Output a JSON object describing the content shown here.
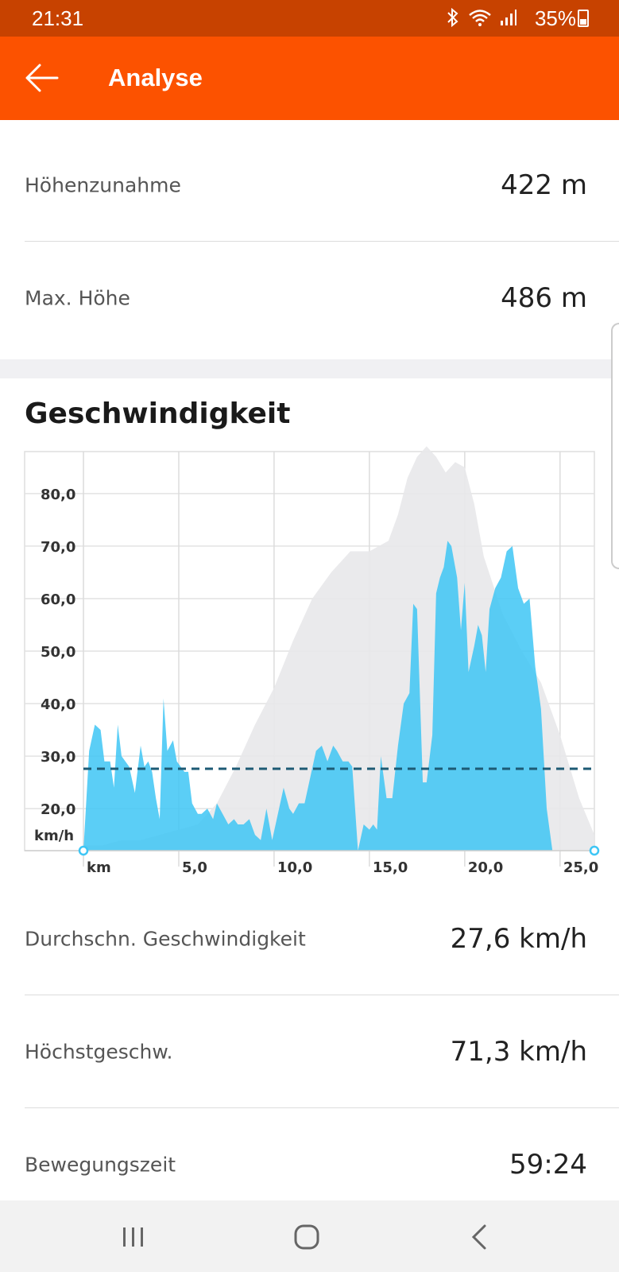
{
  "status_bar": {
    "time": "21:31",
    "battery": "35%"
  },
  "app_bar": {
    "title": "Analyse"
  },
  "stats_top": [
    {
      "label": "Höhenzunahme",
      "value": "422 m"
    },
    {
      "label": "Max. Höhe",
      "value": "486 m"
    }
  ],
  "speed_section": {
    "title": "Geschwindigkeit"
  },
  "chart_data": {
    "type": "area",
    "y_unit_label": "km/h",
    "x_unit_label": "km",
    "y_ticks": [
      "20,0",
      "30,0",
      "40,0",
      "50,0",
      "60,0",
      "70,0",
      "80,0"
    ],
    "x_ticks": [
      "5,0",
      "10,0",
      "15,0",
      "20,0",
      "25,0"
    ],
    "ylim": [
      12,
      88
    ],
    "xlim": [
      0,
      26.8
    ],
    "average_line": 27.6,
    "series": [
      {
        "values_x": [
          0,
          0.3,
          0.6,
          0.9,
          1.1,
          1.4,
          1.6,
          1.8,
          2.0,
          2.2,
          2.4,
          2.7,
          3.0,
          3.2,
          3.4,
          3.6,
          3.8,
          4.0,
          4.2,
          4.4,
          4.7,
          4.9,
          5.1,
          5.3,
          5.5,
          5.7,
          6.0,
          6.2,
          6.5,
          6.8,
          7.0,
          7.3,
          7.6,
          7.9,
          8.1,
          8.4,
          8.7,
          9.0,
          9.3,
          9.6,
          9.9,
          10.2,
          10.5,
          10.8,
          11.0,
          11.3,
          11.6,
          11.9,
          12.2,
          12.5,
          12.8,
          13.1,
          13.3,
          13.6,
          13.9,
          14.1,
          14.4,
          14.7,
          15.0,
          15.2,
          15.4,
          15.6,
          15.9,
          16.2,
          16.5,
          16.8,
          17.1,
          17.3,
          17.5,
          17.8,
          18.0,
          18.3,
          18.5,
          18.7,
          18.9,
          19.1,
          19.3,
          19.6,
          19.8,
          20.0,
          20.2,
          20.5,
          20.7,
          20.9,
          21.1,
          21.3,
          21.6,
          21.9,
          22.2,
          22.5,
          22.8,
          23.1,
          23.4,
          23.7,
          24.0,
          24.3,
          24.6,
          24.9,
          25.2,
          25.5,
          25.8,
          26.2,
          26.5,
          26.8
        ],
        "values_y": [
          12,
          31,
          36,
          35,
          29,
          29,
          24,
          36,
          30,
          29,
          28,
          23,
          32,
          28,
          29,
          27,
          22,
          18,
          41,
          31,
          33,
          29,
          28,
          27,
          27,
          21,
          19,
          19,
          20,
          18,
          21,
          19,
          17,
          18,
          17,
          17,
          18,
          15,
          14,
          20,
          14,
          19,
          24,
          20,
          19,
          21,
          21,
          26,
          31,
          32,
          29,
          32,
          31,
          29,
          29,
          28,
          12,
          17,
          16,
          17,
          16,
          30,
          22,
          22,
          32,
          40,
          42,
          59,
          58,
          25,
          25,
          34,
          61,
          64,
          66,
          71,
          70,
          64,
          54,
          63,
          46,
          51,
          55,
          53,
          46,
          58,
          62,
          64,
          69,
          70,
          62,
          59,
          60,
          47,
          39,
          20,
          12,
          12,
          12,
          12,
          12,
          12,
          12,
          12
        ]
      },
      {
        "values_x": [
          0,
          1.0,
          2.0,
          3.0,
          4.0,
          5.0,
          6.0,
          7.0,
          8.0,
          9.0,
          10.0,
          11.0,
          12.0,
          13.0,
          14.0,
          15.0,
          16.0,
          16.5,
          17.0,
          17.5,
          18.0,
          18.5,
          19.0,
          19.5,
          20.0,
          20.5,
          21.0,
          22.0,
          23.0,
          24.0,
          25.0,
          26.0,
          26.8
        ],
        "values_y": [
          13,
          13,
          14,
          14,
          15,
          16,
          17,
          21,
          28,
          36,
          43,
          52,
          60,
          65,
          69,
          69,
          71,
          76,
          83,
          87,
          89,
          87,
          84,
          86,
          85,
          78,
          68,
          57,
          50,
          44,
          34,
          22,
          15
        ]
      }
    ]
  },
  "stats_bottom": [
    {
      "label": "Durchschn. Geschwindigkeit",
      "value": "27,6 km/h"
    },
    {
      "label": "Höchstgeschw.",
      "value": "71,3 km/h"
    },
    {
      "label": "Bewegungszeit",
      "value": "59:24"
    }
  ],
  "colors": {
    "status_bar": "#c74200",
    "app_bar": "#fc5200",
    "speed_fill": "#3ec6f5",
    "elevation_fill": "#e8e8ea",
    "avg_line": "#1d5a74"
  }
}
